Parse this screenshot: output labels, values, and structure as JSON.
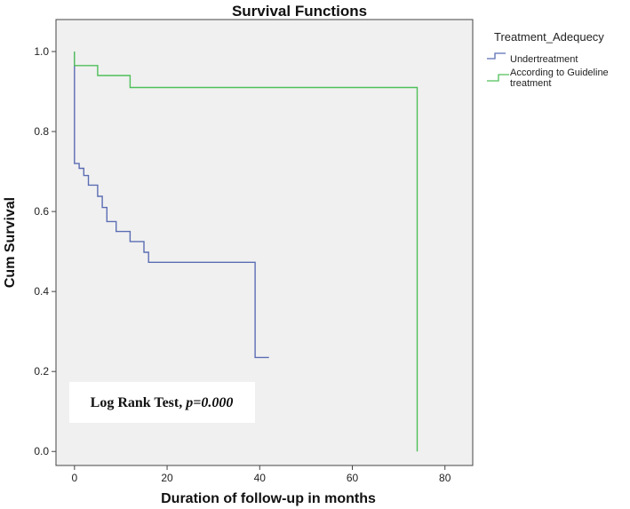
{
  "chart_data": {
    "type": "line",
    "title": "Survival Functions",
    "xlabel": "Duration of follow-up in months",
    "ylabel": "Cum Survival",
    "xlim": [
      -4,
      86
    ],
    "ylim": [
      -0.035,
      1.08
    ],
    "x_ticks": [
      0,
      20,
      40,
      60,
      80
    ],
    "y_ticks": [
      0.0,
      0.2,
      0.4,
      0.6,
      0.8,
      1.0
    ],
    "y_tick_labels": [
      "0.0",
      "0.2",
      "0.4",
      "0.6",
      "0.8",
      "1.0"
    ],
    "grid": false,
    "legend": {
      "title": "Treatment_Adequecy",
      "placement": "top-right outside"
    },
    "series": [
      {
        "name": "Undertreatment",
        "color": "#5b6db3",
        "step": true,
        "points": [
          [
            0,
            1.0
          ],
          [
            0,
            0.72
          ],
          [
            1,
            0.72
          ],
          [
            1,
            0.708
          ],
          [
            2,
            0.708
          ],
          [
            2,
            0.69
          ],
          [
            3,
            0.69
          ],
          [
            3,
            0.666
          ],
          [
            5,
            0.666
          ],
          [
            5,
            0.638
          ],
          [
            6,
            0.638
          ],
          [
            6,
            0.61
          ],
          [
            7,
            0.61
          ],
          [
            7,
            0.575
          ],
          [
            9,
            0.575
          ],
          [
            9,
            0.55
          ],
          [
            12,
            0.55
          ],
          [
            12,
            0.525
          ],
          [
            15,
            0.525
          ],
          [
            15,
            0.498
          ],
          [
            16,
            0.498
          ],
          [
            16,
            0.473
          ],
          [
            39,
            0.473
          ],
          [
            39,
            0.235
          ],
          [
            42,
            0.235
          ]
        ]
      },
      {
        "name": "According to Guideline treatment",
        "color": "#4fbf5a",
        "step": true,
        "points": [
          [
            0,
            1.0
          ],
          [
            0,
            0.965
          ],
          [
            5,
            0.965
          ],
          [
            5,
            0.94
          ],
          [
            12,
            0.94
          ],
          [
            12,
            0.91
          ],
          [
            74,
            0.91
          ],
          [
            74,
            0.0
          ]
        ]
      }
    ],
    "annotation": {
      "prefix": "Log Rank Test, ",
      "value": "p=0.000"
    }
  },
  "colors": {
    "plot_background": "#f0f0f0",
    "axis": "#444444"
  }
}
